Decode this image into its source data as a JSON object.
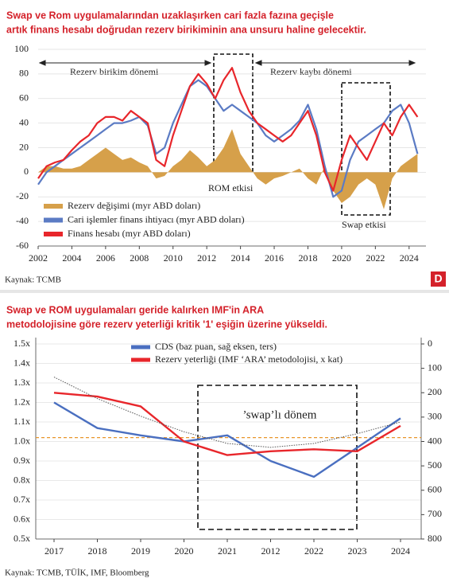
{
  "chart_data": [
    {
      "type": "line",
      "title": [
        "Swap ve Rom uygulamalarından uzaklaşırken cari fazla fazına geçişle",
        "artık finans hesabı doğrudan rezerv birikiminin ana unsuru haline gelecektir."
      ],
      "x": [
        2002,
        2002.5,
        2003,
        2003.5,
        2004,
        2004.5,
        2005,
        2005.5,
        2006,
        2006.5,
        2007,
        2007.5,
        2008,
        2008.5,
        2009,
        2009.5,
        2010,
        2010.5,
        2011,
        2011.5,
        2012,
        2012.5,
        2013,
        2013.5,
        2014,
        2014.5,
        2015,
        2015.5,
        2016,
        2016.5,
        2017,
        2017.5,
        2018,
        2018.5,
        2019,
        2019.5,
        2020,
        2020.5,
        2021,
        2021.5,
        2022,
        2022.5,
        2023,
        2023.5,
        2024,
        2024.5
      ],
      "series": [
        {
          "name": "Rezerv değişimi (myr ABD doları)",
          "color": "#d6a04a",
          "style": "area",
          "values": [
            0,
            5,
            5,
            3,
            3,
            5,
            10,
            15,
            20,
            15,
            10,
            12,
            8,
            5,
            -5,
            -3,
            5,
            10,
            18,
            12,
            5,
            10,
            20,
            35,
            15,
            5,
            -5,
            -10,
            -5,
            -3,
            0,
            3,
            -5,
            -10,
            5,
            -15,
            -25,
            -20,
            -10,
            -5,
            -10,
            -30,
            -5,
            5,
            10,
            15
          ]
        },
        {
          "name": "Cari işlemler finans ihtiyacı (myr ABD doları)",
          "color": "#5b7bc4",
          "style": "line",
          "values": [
            -10,
            0,
            5,
            10,
            15,
            20,
            25,
            30,
            35,
            40,
            40,
            42,
            45,
            38,
            15,
            20,
            40,
            55,
            70,
            75,
            70,
            60,
            50,
            55,
            50,
            45,
            40,
            30,
            25,
            30,
            35,
            42,
            55,
            35,
            5,
            -20,
            -15,
            10,
            25,
            30,
            35,
            40,
            50,
            55,
            40,
            15
          ]
        },
        {
          "name": "Finans hesabı (myr ABD doları)",
          "color": "#e8262b",
          "style": "line",
          "values": [
            -5,
            5,
            8,
            10,
            18,
            25,
            30,
            40,
            45,
            45,
            42,
            50,
            45,
            40,
            10,
            5,
            30,
            50,
            70,
            80,
            72,
            60,
            75,
            85,
            65,
            50,
            40,
            35,
            30,
            25,
            30,
            40,
            50,
            30,
            0,
            -15,
            10,
            30,
            20,
            10,
            25,
            40,
            30,
            45,
            55,
            45
          ]
        }
      ],
      "xlim": [
        2002,
        2025
      ],
      "xticks": [
        2002,
        2004,
        2006,
        2008,
        2010,
        2012,
        2014,
        2016,
        2018,
        2020,
        2022,
        2024
      ],
      "ylim": [
        -60,
        100
      ],
      "yticks": [
        -60,
        -40,
        -20,
        0,
        20,
        40,
        60,
        80,
        100
      ],
      "grid": true,
      "annotations": [
        "Rezerv birikim dönemi",
        "Rezerv kaybı dönemi",
        "ROM etkisi",
        "Swap etkisi"
      ],
      "source": "Kaynak: TCMB",
      "logo": "D"
    },
    {
      "type": "line",
      "title": [
        "Swap ve ROM uygulamaları geride kalırken IMF'in ARA",
        "metodolojisine göre rezerv yeterliği kritik '1' eşiğin üzerine yükseldi."
      ],
      "categories": [
        "2017",
        "2018",
        "2019",
        "2020",
        "2021",
        "2012",
        "2022",
        "2023",
        "2024"
      ],
      "series": [
        {
          "name": "CDS (baz puan, sağ eksen, ters)",
          "color": "#4a6fc0",
          "style": "line",
          "axis": "y2",
          "values": [
            240,
            345,
            375,
            400,
            375,
            480,
            545,
            425,
            305
          ]
        },
        {
          "name": "Rezerv yeterliği (IMF ‘ARA’ metodolojisi, x kat)",
          "color": "#e8262b",
          "style": "line",
          "values": [
            1.25,
            1.23,
            1.18,
            1.0,
            0.93,
            0.95,
            0.96,
            0.95,
            1.08
          ]
        },
        {
          "color": "#555555",
          "style": "dotted",
          "values": [
            1.33,
            1.22,
            1.13,
            1.05,
            0.99,
            0.97,
            0.99,
            1.04,
            1.1
          ]
        }
      ],
      "ylim": [
        0.5,
        1.5
      ],
      "yticks": [
        {
          "value": 0.5,
          "label": "0.5x"
        },
        {
          "value": 0.6,
          "label": "0.6x"
        },
        {
          "value": 0.7,
          "label": "0.7x"
        },
        {
          "value": 0.8,
          "label": "0.8x"
        },
        {
          "value": 0.9,
          "label": "0.9x"
        },
        {
          "value": 1.0,
          "label": "1.0x"
        },
        {
          "value": 1.1,
          "label": "1.1x"
        },
        {
          "value": 1.2,
          "label": "1.2x"
        },
        {
          "value": 1.3,
          "label": "1.3x"
        },
        {
          "value": 1.4,
          "label": "1.4x"
        },
        {
          "value": 1.5,
          "label": "1.5x"
        }
      ],
      "y2lim": [
        0,
        800
      ],
      "y2ticks": [
        0,
        100,
        200,
        300,
        400,
        500,
        600,
        700,
        800
      ],
      "y2_inverted": true,
      "reference_line": 1.02,
      "reference_color": "#e8962b",
      "grid": true,
      "annotations": [
        "’swap’lı dönem"
      ],
      "source": "Kaynak: TCMB, TÜİK, IMF, Bloomberg"
    }
  ]
}
